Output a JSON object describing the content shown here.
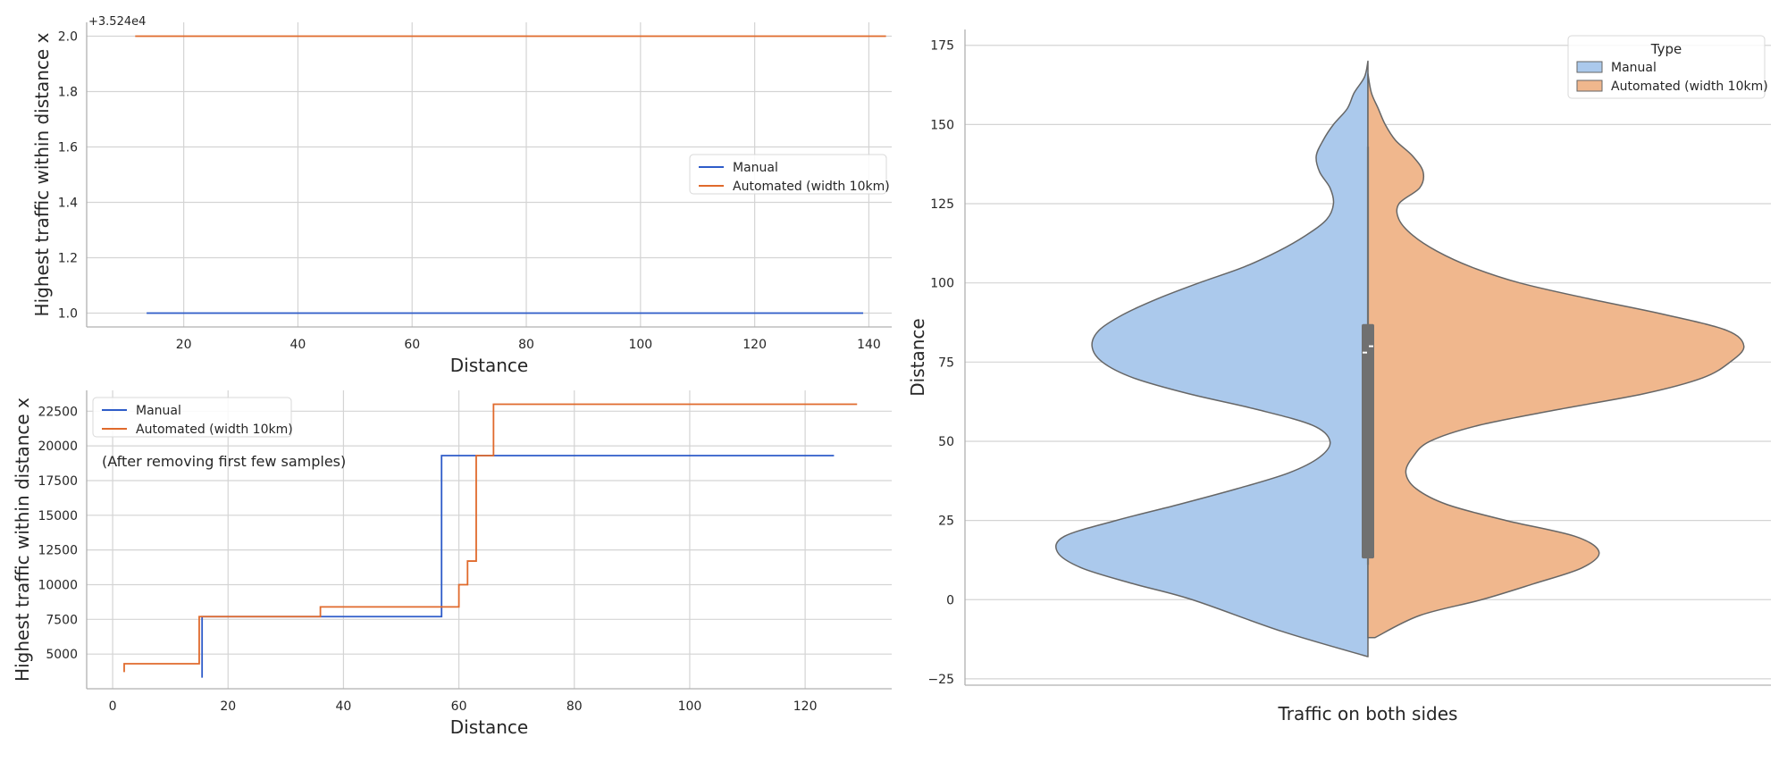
{
  "chart_data": [
    {
      "type": "line",
      "drawstyle": "steps-post",
      "title": "",
      "xlabel": "Distance",
      "ylabel": "Highest traffic within distance x",
      "offset_label": "+3.524e4",
      "xlim": [
        3,
        144
      ],
      "ylim": [
        0.95,
        2.05
      ],
      "xticks": [
        20,
        40,
        60,
        80,
        100,
        120,
        140
      ],
      "yticks": [
        1.0,
        1.2,
        1.4,
        1.6,
        1.8,
        2.0
      ],
      "xtick_labels": [
        "20",
        "40",
        "60",
        "80",
        "100",
        "120",
        "140"
      ],
      "ytick_labels": [
        "1.0",
        "1.2",
        "1.4",
        "1.6",
        "1.8",
        "2.0"
      ],
      "grid": true,
      "legend_position": "center-right",
      "series": [
        {
          "name": "Manual",
          "color": "#2e5cc9",
          "x": [
            13.5,
            139
          ],
          "y": [
            1.0,
            1.0
          ]
        },
        {
          "name": "Automated (width 10km)",
          "color": "#e06a2c",
          "x": [
            11.5,
            143
          ],
          "y": [
            2.0,
            2.0
          ]
        }
      ]
    },
    {
      "type": "line",
      "drawstyle": "steps-post",
      "title": "",
      "annotation": "(After removing first few samples)",
      "xlabel": "Distance",
      "ylabel": "Highest traffic within distance x",
      "xlim": [
        -4.5,
        135
      ],
      "ylim": [
        2500,
        24000
      ],
      "xticks": [
        0,
        20,
        40,
        60,
        80,
        100,
        120
      ],
      "yticks": [
        5000,
        7500,
        10000,
        12500,
        15000,
        17500,
        20000,
        22500
      ],
      "xtick_labels": [
        "0",
        "20",
        "40",
        "60",
        "80",
        "100",
        "120"
      ],
      "ytick_labels": [
        "5000",
        "7500",
        "10000",
        "12500",
        "15000",
        "17500",
        "20000",
        "22500"
      ],
      "grid": true,
      "legend_position": "top-left",
      "series": [
        {
          "name": "Manual",
          "color": "#2e5cc9",
          "x": [
            15.5,
            15.5,
            57,
            125
          ],
          "y": [
            3300,
            7700,
            19300,
            19300
          ]
        },
        {
          "name": "Automated (width 10km)",
          "color": "#e06a2c",
          "x": [
            2,
            2,
            15,
            36,
            60,
            61.5,
            63,
            66,
            129
          ],
          "y": [
            3700,
            4300,
            7700,
            8400,
            10000,
            11700,
            19300,
            23000,
            23000
          ]
        }
      ]
    },
    {
      "type": "violin",
      "split": true,
      "title": "",
      "xlabel": "Traffic on both sides",
      "ylabel": "Distance",
      "ylim": [
        -27,
        180
      ],
      "yticks": [
        -25,
        0,
        25,
        50,
        75,
        100,
        125,
        150,
        175
      ],
      "ytick_labels": [
        "−25",
        "0",
        "25",
        "50",
        "75",
        "100",
        "125",
        "150",
        "175"
      ],
      "grid": true,
      "legend_title": "Type",
      "legend_position": "top-right",
      "box": {
        "q1": 13,
        "q3": 87,
        "whisker_low": 11,
        "whisker_high": 143,
        "median_left": 78,
        "median_right": 80
      },
      "series": [
        {
          "name": "Manual",
          "color": "#abc9ec",
          "side": "left",
          "profile_y": [
            -18,
            -10,
            0,
            5,
            10,
            15,
            20,
            25,
            30,
            35,
            40,
            45,
            50,
            55,
            60,
            65,
            70,
            75,
            80,
            85,
            90,
            95,
            100,
            105,
            110,
            115,
            120,
            125,
            130,
            135,
            140,
            145,
            150,
            155,
            160,
            165,
            170
          ],
          "profile_width": [
            0.0,
            0.25,
            0.51,
            0.68,
            0.83,
            0.9,
            0.88,
            0.73,
            0.55,
            0.38,
            0.23,
            0.14,
            0.11,
            0.16,
            0.32,
            0.52,
            0.68,
            0.77,
            0.8,
            0.78,
            0.71,
            0.61,
            0.49,
            0.36,
            0.26,
            0.18,
            0.12,
            0.1,
            0.11,
            0.14,
            0.15,
            0.13,
            0.1,
            0.06,
            0.04,
            0.01,
            0.0
          ]
        },
        {
          "name": "Automated (width 10km)",
          "color": "#f0b78d",
          "side": "right",
          "profile_y": [
            -12,
            -5,
            0,
            5,
            10,
            15,
            20,
            25,
            30,
            35,
            40,
            45,
            50,
            55,
            60,
            65,
            70,
            75,
            80,
            85,
            90,
            95,
            100,
            105,
            110,
            115,
            120,
            125,
            130,
            135,
            140,
            145,
            150,
            155,
            160,
            166
          ],
          "profile_width": [
            0.02,
            0.15,
            0.33,
            0.48,
            0.62,
            0.67,
            0.6,
            0.4,
            0.23,
            0.14,
            0.11,
            0.13,
            0.18,
            0.32,
            0.55,
            0.8,
            0.97,
            1.05,
            1.09,
            1.04,
            0.86,
            0.64,
            0.44,
            0.3,
            0.2,
            0.13,
            0.09,
            0.09,
            0.15,
            0.16,
            0.13,
            0.08,
            0.05,
            0.03,
            0.01,
            0.0
          ]
        }
      ]
    }
  ]
}
